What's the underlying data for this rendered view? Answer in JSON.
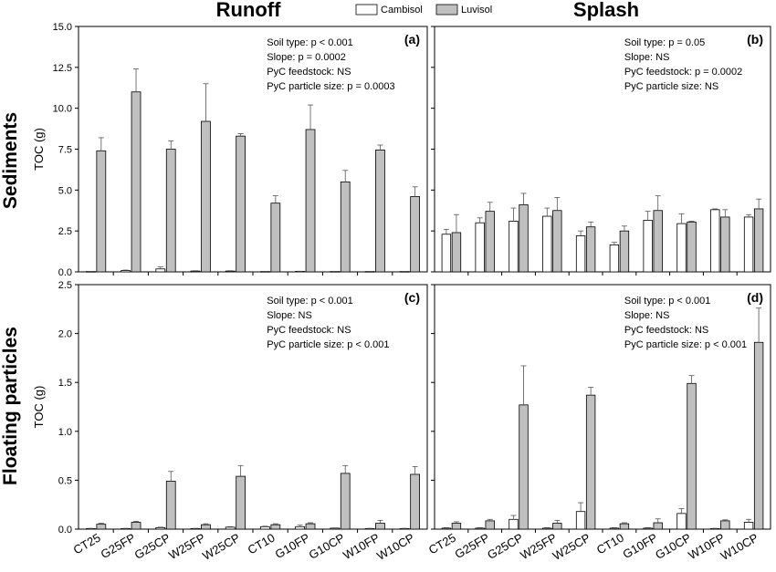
{
  "columns": [
    "Runoff",
    "Splash"
  ],
  "rows": [
    "Sediments",
    "Floating particles"
  ],
  "legend": [
    {
      "name": "Cambisol",
      "color": "#ffffff"
    },
    {
      "name": "Luvisol",
      "color": "#c0c0c0"
    }
  ],
  "chart_data": [
    {
      "type": "bar",
      "panel_label": "(a)",
      "ylabel": "TOC (g)",
      "ylim": [
        0,
        15
      ],
      "yticks": [
        "0.0",
        "2.5",
        "5.0",
        "7.5",
        "10.0",
        "12.5",
        "15.0"
      ],
      "categories": [
        "CT25",
        "G25FP",
        "G25CP",
        "W25FP",
        "W25CP",
        "CT10",
        "G10FP",
        "G10CP",
        "W10FP",
        "W10CP"
      ],
      "series": [
        {
          "name": "Cambisol",
          "values": [
            0.02,
            0.08,
            0.18,
            0.05,
            0.05,
            0.02,
            0.03,
            0.02,
            0.02,
            0.02
          ],
          "errors": [
            0.01,
            0.03,
            0.12,
            0.02,
            0.02,
            0.01,
            0.01,
            0.01,
            0.01,
            0.01
          ]
        },
        {
          "name": "Luvisol",
          "values": [
            7.4,
            11.0,
            7.5,
            9.2,
            8.3,
            4.2,
            8.7,
            5.5,
            7.45,
            4.6
          ],
          "errors": [
            0.8,
            1.4,
            0.5,
            2.3,
            0.15,
            0.45,
            1.5,
            0.7,
            0.3,
            0.6
          ]
        }
      ],
      "annotations": [
        "Soil type: p < 0.001",
        "Slope: p = 0.0002",
        "PyC feedstock: NS",
        "PyC particle size: p = 0.0003"
      ]
    },
    {
      "type": "bar",
      "panel_label": "(b)",
      "ylabel": "",
      "ylim": [
        0,
        15
      ],
      "categories": [
        "CT25",
        "G25FP",
        "G25CP",
        "W25FP",
        "W25CP",
        "CT10",
        "G10FP",
        "G10CP",
        "W10FP",
        "W10CP"
      ],
      "series": [
        {
          "name": "Cambisol",
          "values": [
            2.3,
            3.0,
            3.1,
            3.4,
            2.2,
            1.65,
            3.15,
            2.95,
            3.8,
            3.35
          ],
          "errors": [
            0.3,
            0.3,
            0.8,
            0.5,
            0.3,
            0.15,
            0.55,
            0.6,
            0.05,
            0.15
          ]
        },
        {
          "name": "Luvisol",
          "values": [
            2.4,
            3.7,
            4.1,
            3.75,
            2.75,
            2.5,
            3.75,
            3.05,
            3.35,
            3.85
          ],
          "errors": [
            1.1,
            0.55,
            0.7,
            0.8,
            0.3,
            0.3,
            0.9,
            0.05,
            0.45,
            0.6
          ]
        }
      ],
      "annotations": [
        "Soil type: p = 0.05",
        "Slope: NS",
        "PyC feedstock: p = 0.0002",
        "PyC particle size: NS"
      ]
    },
    {
      "type": "bar",
      "panel_label": "(c)",
      "ylabel": "TOC (g)",
      "ylim": [
        0,
        2.5
      ],
      "yticks": [
        "0.0",
        "0.5",
        "1.0",
        "1.5",
        "2.0",
        "2.5"
      ],
      "categories": [
        "CT25",
        "G25FP",
        "G25CP",
        "W25FP",
        "W25CP",
        "CT10",
        "G10FP",
        "G10CP",
        "W10FP",
        "W10CP"
      ],
      "series": [
        {
          "name": "Cambisol",
          "values": [
            0.005,
            0.005,
            0.015,
            0.005,
            0.02,
            0.025,
            0.025,
            0.01,
            0.005,
            0.005
          ],
          "errors": [
            0.003,
            0.003,
            0.005,
            0.003,
            0.005,
            0.005,
            0.015,
            0.003,
            0.003,
            0.003
          ]
        },
        {
          "name": "Luvisol",
          "values": [
            0.05,
            0.07,
            0.49,
            0.045,
            0.54,
            0.045,
            0.055,
            0.57,
            0.06,
            0.56
          ],
          "errors": [
            0.01,
            0.01,
            0.1,
            0.01,
            0.11,
            0.01,
            0.01,
            0.08,
            0.03,
            0.08
          ]
        }
      ],
      "annotations": [
        "Soil type: p < 0.001",
        "Slope: NS",
        "PyC feedstock: NS",
        "PyC particle size: p < 0.001"
      ]
    },
    {
      "type": "bar",
      "panel_label": "(d)",
      "ylabel": "",
      "ylim": [
        0,
        2.5
      ],
      "categories": [
        "CT25",
        "G25FP",
        "G25CP",
        "W25FP",
        "W25CP",
        "CT10",
        "G10FP",
        "G10CP",
        "W10FP",
        "W10CP"
      ],
      "series": [
        {
          "name": "Cambisol",
          "values": [
            0.01,
            0.01,
            0.1,
            0.01,
            0.18,
            0.01,
            0.01,
            0.16,
            0.005,
            0.07
          ],
          "errors": [
            0.005,
            0.005,
            0.04,
            0.005,
            0.09,
            0.005,
            0.005,
            0.05,
            0.003,
            0.03
          ]
        },
        {
          "name": "Luvisol",
          "values": [
            0.06,
            0.085,
            1.27,
            0.06,
            1.37,
            0.055,
            0.065,
            1.49,
            0.085,
            1.91
          ],
          "errors": [
            0.015,
            0.015,
            0.4,
            0.03,
            0.08,
            0.01,
            0.04,
            0.08,
            0.01,
            0.35
          ]
        }
      ],
      "annotations": [
        "Soil type: p < 0.001",
        "Slope: NS",
        "PyC feedstock: NS",
        "PyC particle size: p < 0.001"
      ]
    }
  ]
}
